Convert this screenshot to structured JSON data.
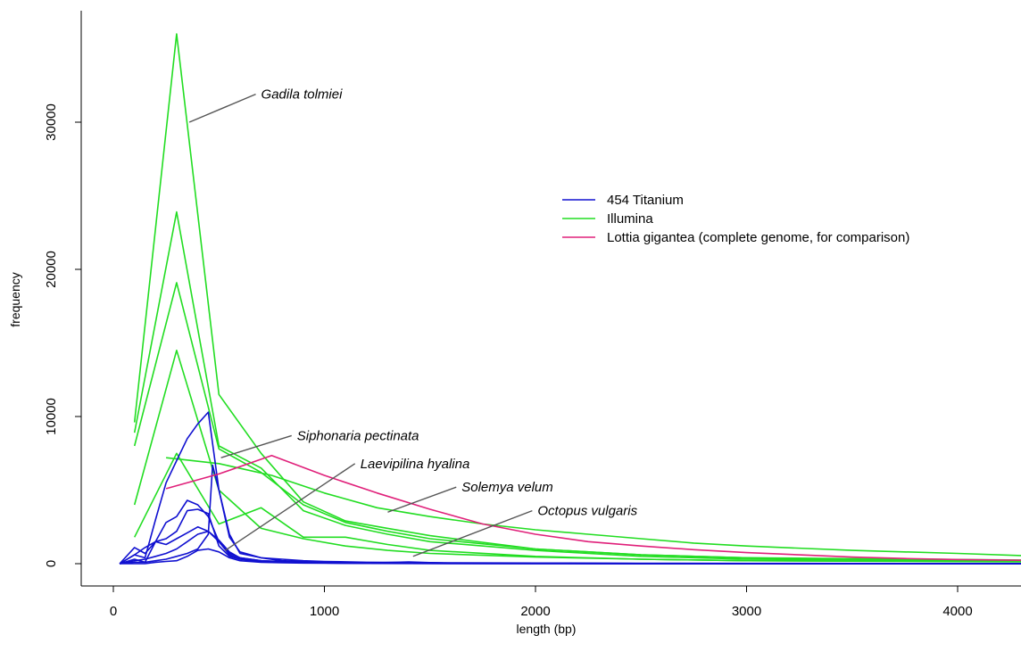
{
  "chart_data": {
    "type": "line",
    "title": "",
    "xlabel": "length (bp)",
    "ylabel": "frequency",
    "xlim": [
      -150,
      4300
    ],
    "ylim": [
      -1500,
      37500
    ],
    "xticks": [
      0,
      1000,
      2000,
      3000,
      4000
    ],
    "yticks": [
      0,
      10000,
      20000,
      30000
    ],
    "x_tick_labels": [
      "0",
      "1000",
      "2000",
      "3000",
      "4000"
    ],
    "y_tick_labels": [
      "0",
      "10000",
      "20000",
      "30000"
    ],
    "grid": false,
    "legend": {
      "position": "right",
      "entries": [
        {
          "label": "454 Titanium",
          "color": "#1010d0"
        },
        {
          "label": "Illumina",
          "color": "#22dd22"
        },
        {
          "label": "Lottia gigantea (complete genome, for comparison)",
          "color": "#e0207a"
        }
      ]
    },
    "annotations": [
      {
        "text": "Gadila tolmiei",
        "point": [
          360,
          30000
        ],
        "text_pos": [
          700,
          31900
        ]
      },
      {
        "text": "Siphonaria pectinata",
        "point": [
          510,
          7200
        ],
        "text_pos": [
          870,
          8700
        ]
      },
      {
        "text": "Laevipilina hyalina",
        "point": [
          530,
          900
        ],
        "text_pos": [
          1170,
          6800
        ]
      },
      {
        "text": "Solemya velum",
        "point": [
          1300,
          3500
        ],
        "text_pos": [
          1650,
          5200
        ]
      },
      {
        "text": "Octopus vulgaris",
        "point": [
          1420,
          500
        ],
        "text_pos": [
          2010,
          3600
        ]
      }
    ],
    "series": [
      {
        "group": "Illumina",
        "color": "#22dd22",
        "x": [
          100,
          300,
          500,
          700,
          900,
          1100,
          1300,
          1500,
          2000,
          2500,
          3000,
          3500,
          4300
        ],
        "y": [
          9600,
          36000,
          11500,
          7500,
          4200,
          2900,
          2400,
          1900,
          1000,
          600,
          400,
          300,
          200
        ]
      },
      {
        "group": "Illumina",
        "color": "#22dd22",
        "x": [
          100,
          300,
          500,
          700,
          900,
          1100,
          1300,
          1500,
          2000,
          2500,
          3000,
          4300
        ],
        "y": [
          8900,
          23900,
          8000,
          6500,
          3600,
          2600,
          2000,
          1500,
          900,
          500,
          300,
          200
        ]
      },
      {
        "group": "Illumina",
        "color": "#22dd22",
        "x": [
          100,
          300,
          500,
          700,
          900,
          1100,
          1300,
          1500,
          2000,
          2500,
          3000,
          4300
        ],
        "y": [
          8000,
          19100,
          7800,
          6200,
          4000,
          2800,
          2200,
          1700,
          1000,
          600,
          400,
          250
        ]
      },
      {
        "group": "Illumina",
        "color": "#22dd22",
        "x": [
          100,
          300,
          500,
          700,
          900,
          1100,
          1300,
          1500,
          2000,
          2500,
          3000,
          4300
        ],
        "y": [
          4000,
          14500,
          5000,
          2400,
          1700,
          1200,
          900,
          700,
          450,
          300,
          200,
          150
        ]
      },
      {
        "group": "Illumina",
        "color": "#22dd22",
        "x": [
          100,
          300,
          500,
          700,
          900,
          1100,
          1300,
          1500,
          2000,
          2500,
          3000,
          4300
        ],
        "y": [
          1800,
          7500,
          2700,
          3800,
          1800,
          1800,
          1300,
          900,
          500,
          300,
          200,
          120
        ]
      },
      {
        "group": "Illumina",
        "color": "#22dd22",
        "x": [
          250,
          500,
          750,
          1000,
          1250,
          1500,
          1750,
          2000,
          2250,
          2500,
          2750,
          3000,
          3500,
          4000,
          4300
        ],
        "y": [
          7200,
          6800,
          6000,
          4800,
          3800,
          3200,
          2700,
          2300,
          2000,
          1700,
          1400,
          1200,
          900,
          700,
          550
        ]
      },
      {
        "group": "454 Titanium",
        "color": "#1010d0",
        "x": [
          30,
          100,
          150,
          200,
          250,
          300,
          350,
          400,
          450,
          500,
          550,
          600,
          700,
          800,
          900,
          1000,
          1200,
          1400,
          1600,
          2000,
          2500,
          3000,
          4300
        ],
        "y": [
          0,
          600,
          400,
          3000,
          5500,
          7000,
          8500,
          9500,
          10300,
          5000,
          2000,
          700,
          400,
          300,
          200,
          150,
          100,
          80,
          60,
          40,
          30,
          20,
          10
        ]
      },
      {
        "group": "454 Titanium",
        "color": "#1010d0",
        "x": [
          30,
          100,
          150,
          200,
          250,
          300,
          350,
          400,
          450,
          500,
          550,
          600,
          700,
          800,
          900,
          1000,
          1200,
          1400,
          1600,
          2000,
          2500,
          3000,
          4300
        ],
        "y": [
          0,
          1100,
          700,
          1500,
          2800,
          3200,
          4300,
          4000,
          3200,
          1500,
          700,
          400,
          200,
          120,
          80,
          60,
          40,
          120,
          30,
          20,
          15,
          10,
          5
        ]
      },
      {
        "group": "454 Titanium",
        "color": "#1010d0",
        "x": [
          30,
          100,
          150,
          200,
          250,
          300,
          350,
          400,
          450,
          500,
          550,
          600,
          700,
          800,
          900,
          1000,
          1200,
          1400,
          1600,
          2000,
          2500,
          3000,
          4300
        ],
        "y": [
          0,
          600,
          1100,
          1500,
          1700,
          2200,
          3600,
          3700,
          3400,
          1200,
          500,
          300,
          150,
          100,
          70,
          50,
          30,
          20,
          15,
          10,
          8,
          5,
          3
        ]
      },
      {
        "group": "454 Titanium",
        "color": "#1010d0",
        "x": [
          30,
          100,
          150,
          200,
          250,
          300,
          350,
          400,
          450,
          500,
          550,
          600,
          700,
          800,
          900,
          1000,
          1200,
          1400,
          1600,
          2000,
          2500,
          3000,
          4300
        ],
        "y": [
          0,
          300,
          100,
          1500,
          1300,
          1700,
          2100,
          2500,
          2200,
          1500,
          600,
          300,
          150,
          100,
          70,
          50,
          30,
          20,
          15,
          10,
          8,
          5,
          3
        ]
      },
      {
        "group": "454 Titanium",
        "color": "#1010d0",
        "x": [
          30,
          100,
          150,
          200,
          250,
          300,
          350,
          400,
          450,
          500,
          550,
          600,
          700,
          800,
          900,
          1000,
          1200,
          1400,
          1600,
          2000,
          2500,
          3000,
          4300
        ],
        "y": [
          0,
          200,
          300,
          500,
          700,
          1000,
          1500,
          2000,
          2200,
          1600,
          800,
          400,
          200,
          150,
          100,
          80,
          50,
          30,
          20,
          15,
          10,
          8,
          5
        ]
      },
      {
        "group": "454 Titanium",
        "color": "#1010d0",
        "x": [
          30,
          100,
          150,
          200,
          250,
          300,
          350,
          400,
          450,
          470,
          500,
          550,
          600,
          700,
          800,
          900,
          1000,
          1200,
          1400,
          1600,
          2000,
          2500,
          3000,
          4300
        ],
        "y": [
          0,
          100,
          100,
          200,
          300,
          500,
          700,
          1000,
          2000,
          6700,
          5000,
          1800,
          800,
          400,
          200,
          150,
          100,
          60,
          40,
          30,
          20,
          15,
          10,
          5
        ]
      },
      {
        "group": "454 Titanium",
        "color": "#1010d0",
        "x": [
          30,
          100,
          150,
          200,
          250,
          300,
          350,
          400,
          450,
          500,
          550,
          600,
          700,
          800,
          900,
          1000,
          1200,
          1400,
          1600,
          2000,
          2500,
          3000,
          4300
        ],
        "y": [
          0,
          0,
          0,
          100,
          150,
          200,
          500,
          900,
          1000,
          800,
          400,
          200,
          100,
          60,
          40,
          30,
          20,
          15,
          10,
          8,
          5,
          3,
          2
        ]
      },
      {
        "group": "Lottia gigantea (complete genome, for comparison)",
        "color": "#e0207a",
        "x": [
          250,
          500,
          750,
          1000,
          1250,
          1500,
          1750,
          2000,
          2250,
          2500,
          2750,
          3000,
          3250,
          3500,
          3750,
          4000,
          4300
        ],
        "y": [
          5100,
          6100,
          7350,
          6000,
          4800,
          3700,
          2700,
          2000,
          1500,
          1200,
          950,
          750,
          600,
          450,
          350,
          280,
          230
        ]
      }
    ]
  }
}
